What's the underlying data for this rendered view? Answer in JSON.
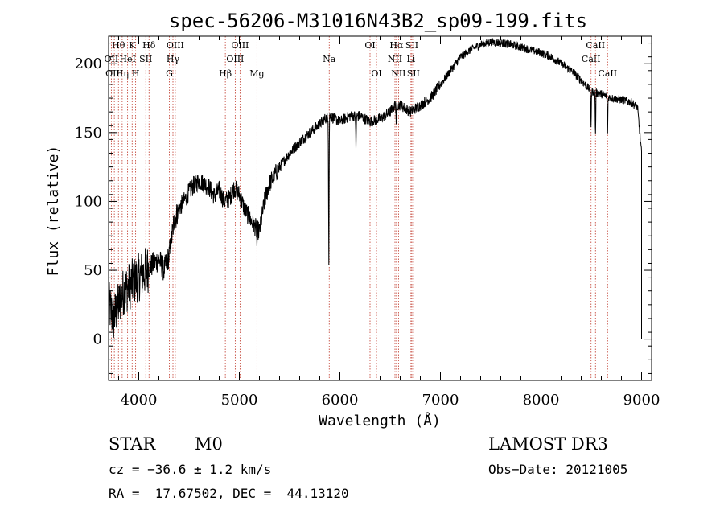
{
  "chart_data": {
    "type": "line",
    "title": "spec-56206-M31016N43B2_sp09-199.fits",
    "xlabel": "Wavelength (Å)",
    "ylabel": "Flux (relative)",
    "xlim": [
      3700,
      9100
    ],
    "ylim": [
      -30,
      220
    ],
    "xticks": [
      4000,
      5000,
      6000,
      7000,
      8000,
      9000
    ],
    "yticks": [
      0,
      50,
      100,
      150,
      200
    ],
    "series": [
      {
        "name": "flux",
        "anchors": [
          [
            3700,
            25
          ],
          [
            3750,
            15
          ],
          [
            3800,
            25
          ],
          [
            3850,
            35
          ],
          [
            3900,
            38
          ],
          [
            3950,
            42
          ],
          [
            4000,
            45
          ],
          [
            4050,
            48
          ],
          [
            4100,
            52
          ],
          [
            4150,
            55
          ],
          [
            4200,
            58
          ],
          [
            4250,
            50
          ],
          [
            4300,
            60
          ],
          [
            4350,
            85
          ],
          [
            4400,
            95
          ],
          [
            4450,
            100
          ],
          [
            4500,
            107
          ],
          [
            4550,
            112
          ],
          [
            4600,
            115
          ],
          [
            4650,
            113
          ],
          [
            4700,
            110
          ],
          [
            4750,
            104
          ],
          [
            4800,
            108
          ],
          [
            4850,
            100
          ],
          [
            4900,
            102
          ],
          [
            4950,
            110
          ],
          [
            5000,
            105
          ],
          [
            5050,
            95
          ],
          [
            5100,
            88
          ],
          [
            5150,
            82
          ],
          [
            5200,
            78
          ],
          [
            5250,
            100
          ],
          [
            5300,
            113
          ],
          [
            5400,
            125
          ],
          [
            5500,
            135
          ],
          [
            5600,
            143
          ],
          [
            5700,
            150
          ],
          [
            5800,
            156
          ],
          [
            5850,
            160
          ],
          [
            5900,
            162
          ],
          [
            5950,
            160
          ],
          [
            6000,
            158
          ],
          [
            6100,
            162
          ],
          [
            6200,
            162
          ],
          [
            6300,
            158
          ],
          [
            6400,
            160
          ],
          [
            6500,
            165
          ],
          [
            6550,
            170
          ],
          [
            6600,
            170
          ],
          [
            6700,
            165
          ],
          [
            6800,
            170
          ],
          [
            6900,
            175
          ],
          [
            7000,
            185
          ],
          [
            7100,
            195
          ],
          [
            7200,
            205
          ],
          [
            7300,
            210
          ],
          [
            7400,
            214
          ],
          [
            7500,
            216
          ],
          [
            7600,
            215
          ],
          [
            7700,
            214
          ],
          [
            7800,
            212
          ],
          [
            7900,
            210
          ],
          [
            8000,
            208
          ],
          [
            8100,
            205
          ],
          [
            8200,
            200
          ],
          [
            8300,
            195
          ],
          [
            8400,
            188
          ],
          [
            8500,
            180
          ],
          [
            8600,
            178
          ],
          [
            8700,
            175
          ],
          [
            8800,
            174
          ],
          [
            8900,
            172
          ],
          [
            8960,
            168
          ],
          [
            9000,
            135
          ]
        ],
        "absorption_dips": [
          {
            "wavelength": 5890,
            "depth": 105
          },
          {
            "wavelength": 6160,
            "depth": 25
          },
          {
            "wavelength": 6560,
            "depth": 12
          },
          {
            "wavelength": 8498,
            "depth": 28
          },
          {
            "wavelength": 8542,
            "depth": 35
          },
          {
            "wavelength": 8662,
            "depth": 30
          },
          {
            "wavelength": 5175,
            "depth": 12
          }
        ]
      }
    ],
    "line_markers": [
      {
        "label": "Hθ",
        "wavelength": 3798,
        "row": 0
      },
      {
        "label": "OII",
        "wavelength": 3727,
        "row": 1
      },
      {
        "label": "OIII",
        "wavelength": 3757,
        "row": 2
      },
      {
        "label": "Hη",
        "wavelength": 3835,
        "row": 2
      },
      {
        "label": "HeI",
        "wavelength": 3889,
        "row": 1
      },
      {
        "label": "K",
        "wavelength": 3934,
        "row": 0
      },
      {
        "label": "H",
        "wavelength": 3969,
        "row": 2
      },
      {
        "label": "SII",
        "wavelength": 4070,
        "row": 1
      },
      {
        "label": "Hδ",
        "wavelength": 4102,
        "row": 0
      },
      {
        "label": "G",
        "wavelength": 4304,
        "row": 2
      },
      {
        "label": "Hγ",
        "wavelength": 4340,
        "row": 1
      },
      {
        "label": "OIII",
        "wavelength": 4363,
        "row": 0
      },
      {
        "label": "Hβ",
        "wavelength": 4861,
        "row": 2
      },
      {
        "label": "OIII",
        "wavelength": 4959,
        "row": 1
      },
      {
        "label": "OIII",
        "wavelength": 5007,
        "row": 0
      },
      {
        "label": "Mg",
        "wavelength": 5175,
        "row": 2
      },
      {
        "label": "Na",
        "wavelength": 5894,
        "row": 1
      },
      {
        "label": "OI",
        "wavelength": 6300,
        "row": 0
      },
      {
        "label": "OI",
        "wavelength": 6364,
        "row": 2
      },
      {
        "label": "NII",
        "wavelength": 6548,
        "row": 1
      },
      {
        "label": "Hα",
        "wavelength": 6563,
        "row": 0
      },
      {
        "label": "NII",
        "wavelength": 6583,
        "row": 2
      },
      {
        "label": "Li",
        "wavelength": 6707,
        "row": 1
      },
      {
        "label": "SII",
        "wavelength": 6716,
        "row": 0
      },
      {
        "label": "SII",
        "wavelength": 6731,
        "row": 2
      },
      {
        "label": "CaII",
        "wavelength": 8498,
        "row": 1
      },
      {
        "label": "CaII",
        "wavelength": 8542,
        "row": 0
      },
      {
        "label": "CaII",
        "wavelength": 8662,
        "row": 2
      }
    ]
  },
  "info": {
    "object_class": "STAR",
    "subclass": "M0",
    "survey": "LAMOST DR3",
    "redshift": "cz = −36.6 ± 1.2 km/s",
    "obs_date": "Obs−Date: 20121005",
    "coords": "RA =  17.67502, DEC =  44.13120"
  }
}
